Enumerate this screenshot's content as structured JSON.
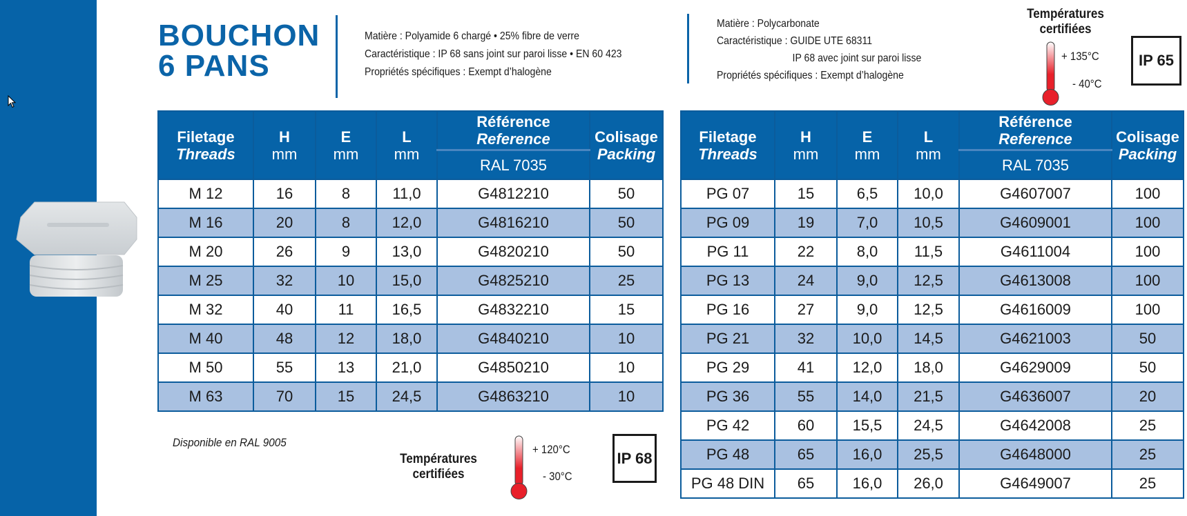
{
  "title": {
    "line1": "BOUCHON",
    "line2": "6 PANS"
  },
  "left_spec": {
    "lines": [
      "Matière : Polyamide 6 chargé • 25% fibre de verre",
      "Caractéristique : IP 68 sans joint sur paroi lisse • EN 60 423",
      "Propriétés spécifiques : Exempt d’halogène"
    ]
  },
  "right_spec": {
    "lines": [
      "Matière : Polycarbonate",
      "Caractéristique : GUIDE UTE 68311",
      "                            IP 68 avec joint sur paroi lisse",
      "Propriétés spécifiques : Exempt d’halogène"
    ]
  },
  "headers": {
    "filetage": "Filetage",
    "threads": "Threads",
    "h": "H",
    "e": "E",
    "l": "L",
    "mm": "mm",
    "reference_fr": "Référence",
    "reference_en": "Reference",
    "ral": "RAL 7035",
    "colisage": "Colisage",
    "packing": "Packing"
  },
  "left_table": [
    [
      "M 12",
      "16",
      "8",
      "11,0",
      "G4812210",
      "50"
    ],
    [
      "M 16",
      "20",
      "8",
      "12,0",
      "G4816210",
      "50"
    ],
    [
      "M 20",
      "26",
      "9",
      "13,0",
      "G4820210",
      "50"
    ],
    [
      "M 25",
      "32",
      "10",
      "15,0",
      "G4825210",
      "25"
    ],
    [
      "M 32",
      "40",
      "11",
      "16,5",
      "G4832210",
      "15"
    ],
    [
      "M 40",
      "48",
      "12",
      "18,0",
      "G4840210",
      "10"
    ],
    [
      "M 50",
      "55",
      "13",
      "21,0",
      "G4850210",
      "10"
    ],
    [
      "M 63",
      "70",
      "15",
      "24,5",
      "G4863210",
      "10"
    ]
  ],
  "right_table": [
    [
      "PG 07",
      "15",
      "6,5",
      "10,0",
      "G4607007",
      "100"
    ],
    [
      "PG 09",
      "19",
      "7,0",
      "10,5",
      "G4609001",
      "100"
    ],
    [
      "PG 11",
      "22",
      "8,0",
      "11,5",
      "G4611004",
      "100"
    ],
    [
      "PG 13",
      "24",
      "9,0",
      "12,5",
      "G4613008",
      "100"
    ],
    [
      "PG 16",
      "27",
      "9,0",
      "12,5",
      "G4616009",
      "100"
    ],
    [
      "PG 21",
      "32",
      "10,0",
      "14,5",
      "G4621003",
      "50"
    ],
    [
      "PG 29",
      "41",
      "12,0",
      "18,0",
      "G4629009",
      "50"
    ],
    [
      "PG 36",
      "55",
      "14,0",
      "21,5",
      "G4636007",
      "20"
    ],
    [
      "PG 42",
      "60",
      "15,5",
      "24,5",
      "G4642008",
      "25"
    ],
    [
      "PG 48",
      "65",
      "16,0",
      "25,5",
      "G4648000",
      "25"
    ],
    [
      "PG 48 DIN",
      "65",
      "16,0",
      "26,0",
      "G4649007",
      "25"
    ]
  ],
  "left_footer": {
    "available": "Disponible en RAL 9005",
    "temp_title_1": "Températures",
    "temp_title_2": "certifiées",
    "temp_max": "+ 120°C",
    "temp_min": "- 30°C",
    "ip": "IP 68"
  },
  "right_header": {
    "temp_title_1": "Températures",
    "temp_title_2": "certifiées",
    "temp_max": "+ 135°C",
    "temp_min": "- 40°C",
    "ip": "IP 65"
  },
  "colors": {
    "brand_blue": "#0663a8",
    "alt_row": "#a9c1e1",
    "thermo_red": "#e8202a"
  },
  "icons": [
    "cursor-icon",
    "thermometer-icon",
    "product-image-hex-plug"
  ]
}
